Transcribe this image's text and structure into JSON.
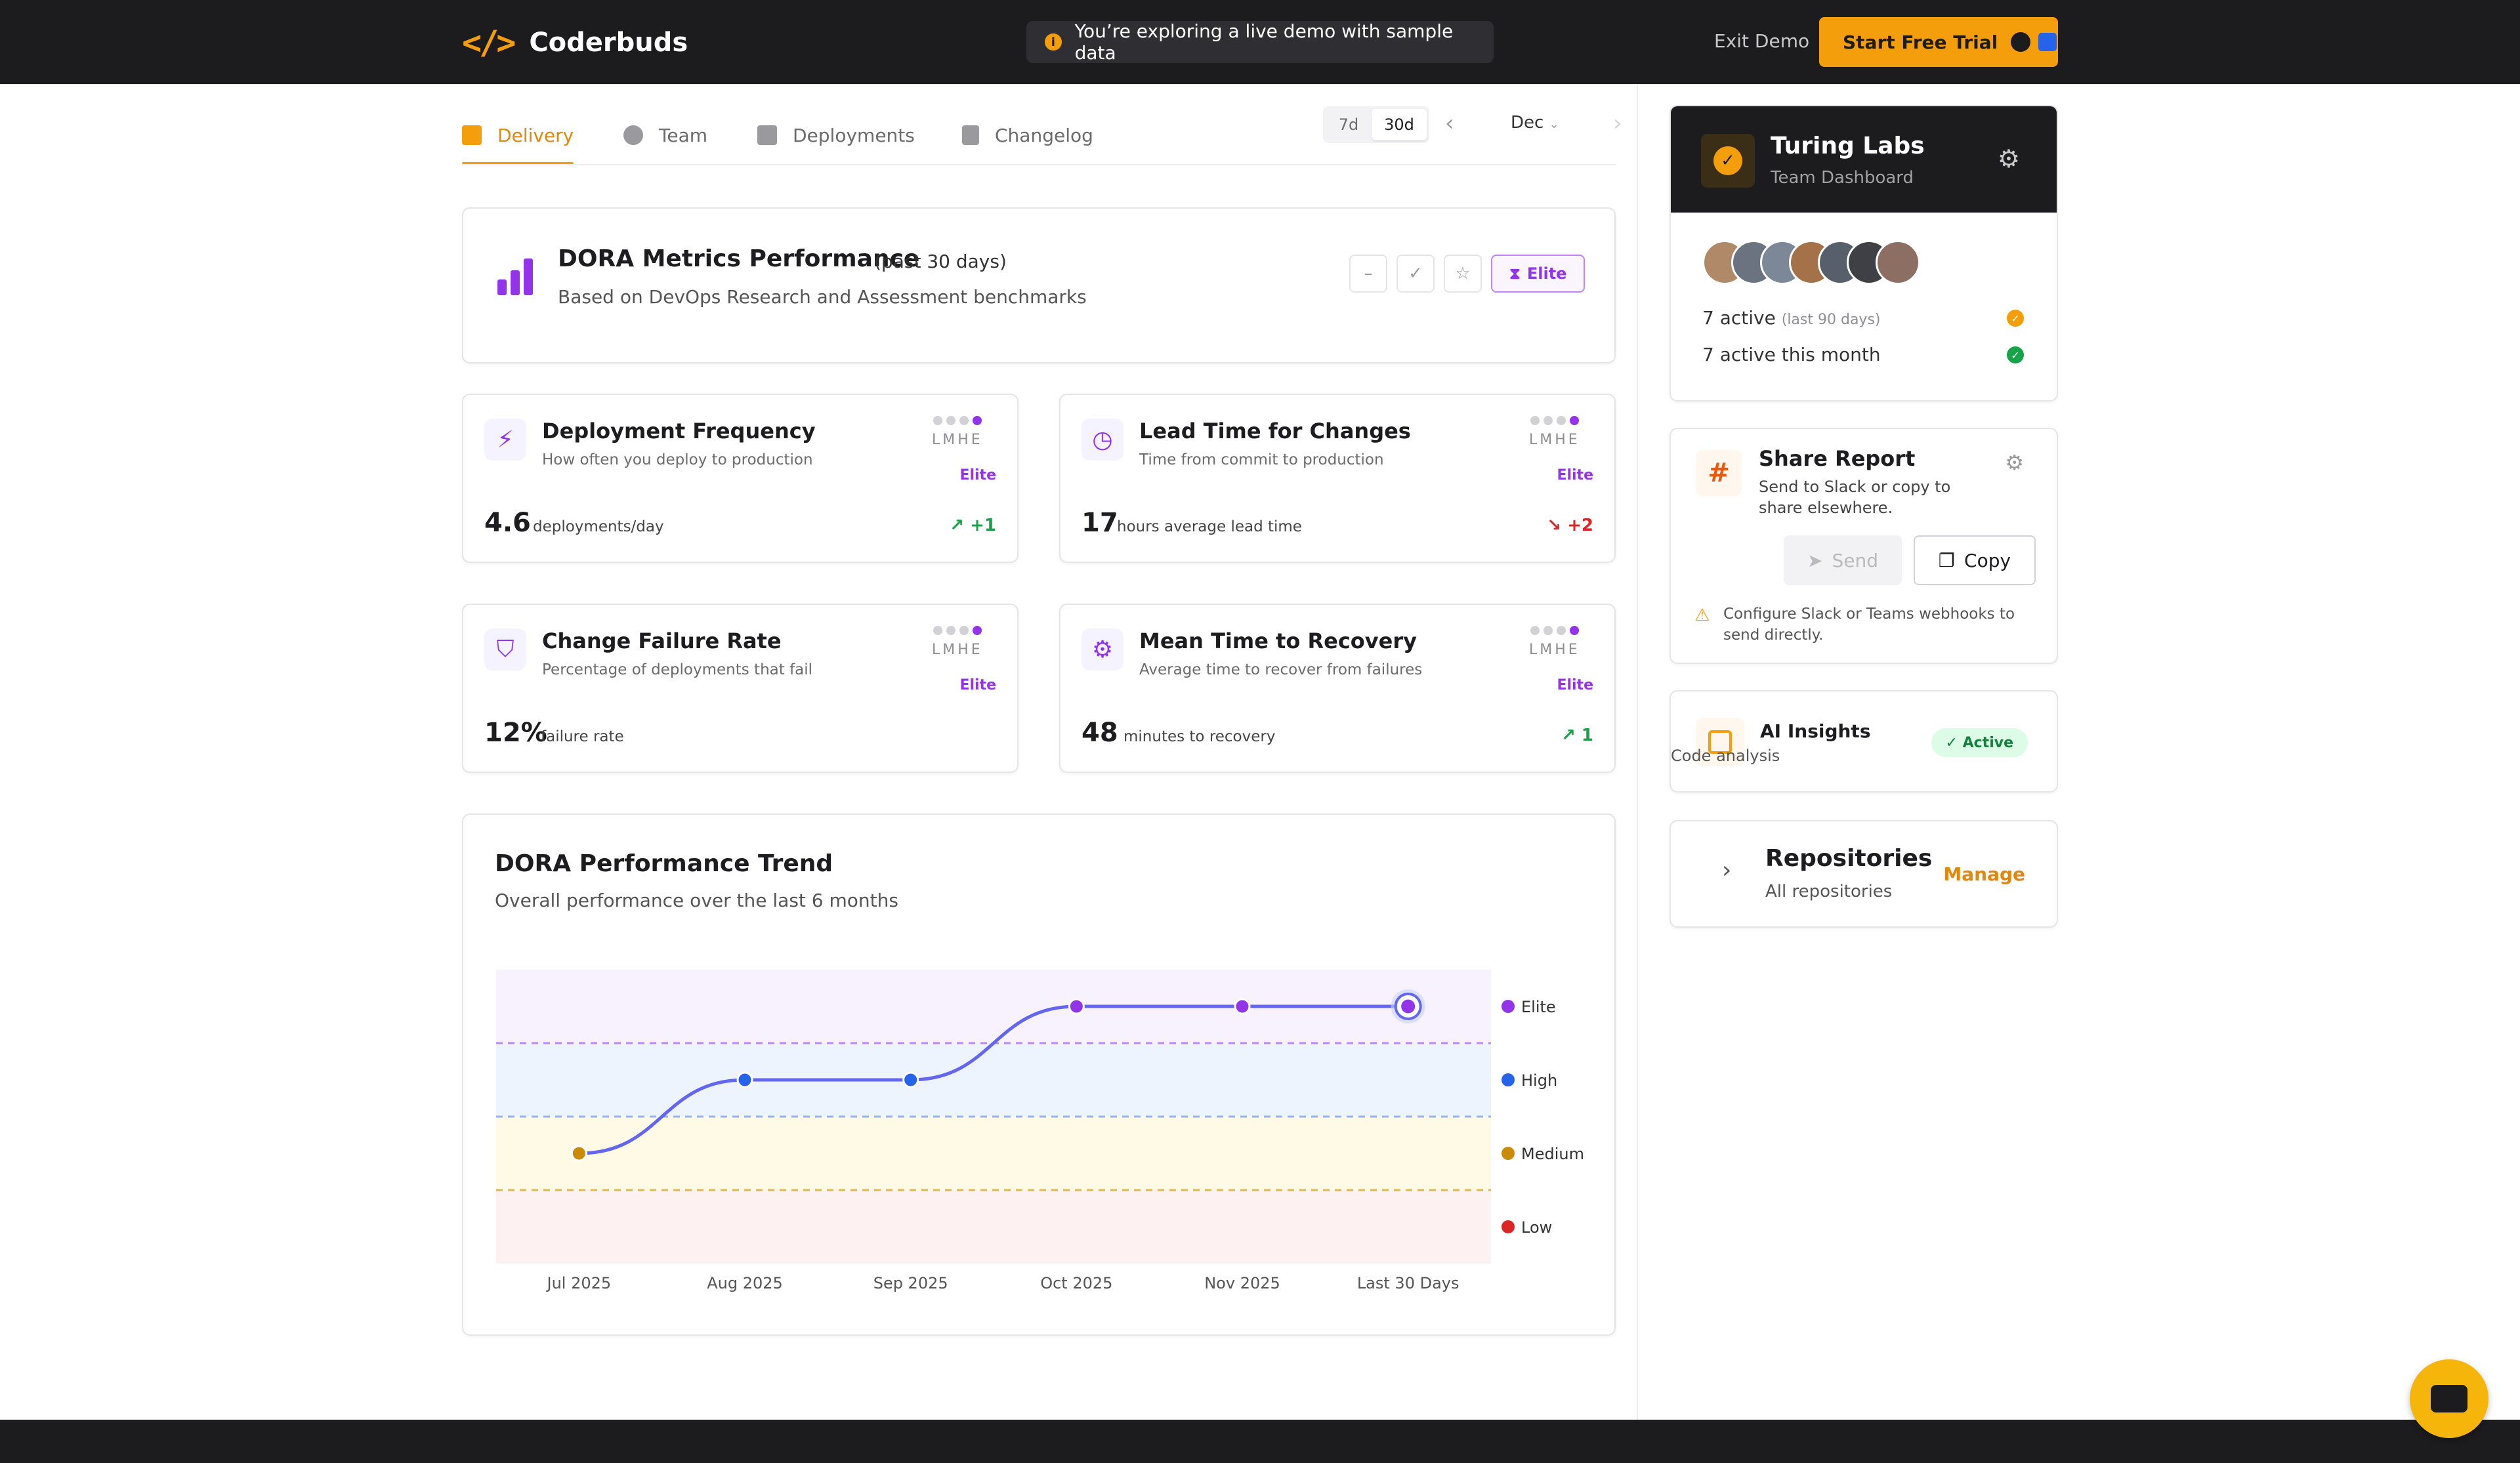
{
  "header": {
    "brand": "Coderbuds",
    "logo_glyph": "</>",
    "demo_banner": "You’re exploring a live demo with sample data",
    "exit_demo": "Exit Demo",
    "trial_button": "Start Free Trial",
    "trial_icons": [
      "github-icon",
      "bitbucket-icon"
    ]
  },
  "tabs": [
    {
      "label": "Delivery",
      "icon": "chart-icon",
      "active": true
    },
    {
      "label": "Team",
      "icon": "users-icon",
      "active": false
    },
    {
      "label": "Deployments",
      "icon": "server-icon",
      "active": false
    },
    {
      "label": "Changelog",
      "icon": "document-icon",
      "active": false
    }
  ],
  "range": {
    "options": [
      "7d",
      "30d"
    ],
    "selected": "30d"
  },
  "month": {
    "selected": "Dec"
  },
  "dora": {
    "title": "DORA Metrics Performance",
    "period": "(past 30 days)",
    "subtitle": "Based on DevOps Research and Assessment benchmarks",
    "badge": "Elite"
  },
  "metrics": [
    {
      "title": "Deployment Frequency",
      "desc": "How often you deploy to production",
      "lmhe": "LMHE",
      "tier": "Elite",
      "value": "4.6",
      "unit": "deployments/day",
      "trend": "+1",
      "trend_dir": "up",
      "icon": "lightning-icon"
    },
    {
      "title": "Lead Time for Changes",
      "desc": "Time from commit to production",
      "lmhe": "LMHE",
      "tier": "Elite",
      "value": "17",
      "unit": "hours average lead time",
      "trend": "+2",
      "trend_dir": "down",
      "icon": "clock-icon"
    },
    {
      "title": "Change Failure Rate",
      "desc": "Percentage of deployments that fail",
      "lmhe": "LMHE",
      "tier": "Elite",
      "value": "12%",
      "unit": "failure rate",
      "trend": "",
      "trend_dir": "none",
      "icon": "shield-icon"
    },
    {
      "title": "Mean Time to Recovery",
      "desc": "Average time to recover from failures",
      "lmhe": "LMHE",
      "tier": "Elite",
      "value": "48",
      "unit": "minutes to recovery",
      "trend": "1",
      "trend_dir": "up",
      "icon": "gear-icon"
    }
  ],
  "trend": {
    "title": "DORA Performance Trend",
    "subtitle": "Overall performance over the last 6 months"
  },
  "chart_data": {
    "type": "line",
    "x": [
      "Jul 2025",
      "Aug 2025",
      "Sep 2025",
      "Oct 2025",
      "Nov 2025",
      "Last 30 Days"
    ],
    "levels": [
      "Low",
      "Medium",
      "High",
      "Elite"
    ],
    "values": [
      "Medium",
      "High",
      "High",
      "Elite",
      "Elite",
      "Elite"
    ],
    "point_colors": [
      "#ca8a04",
      "#2563eb",
      "#2563eb",
      "#9333ea",
      "#9333ea",
      "#9333ea"
    ],
    "legend": [
      {
        "label": "Elite",
        "color": "#9333ea"
      },
      {
        "label": "High",
        "color": "#2563eb"
      },
      {
        "label": "Medium",
        "color": "#ca8a04"
      },
      {
        "label": "Low",
        "color": "#dc2626"
      }
    ],
    "band_colors": {
      "Elite": "#f7f2fd",
      "High": "#eef4fd",
      "Medium": "#fefae6",
      "Low": "#fdf1f1"
    },
    "line_color": "#6366f1",
    "legend_position": "right",
    "title": "",
    "xlabel": "",
    "ylabel": ""
  },
  "team": {
    "name": "Turing Labs",
    "subtitle": "Team Dashboard",
    "avatar_colors": [
      "#b08968",
      "#6b7280",
      "#7c8798",
      "#a47148",
      "#57606a",
      "#3f3f46",
      "#8d6e63"
    ],
    "active_90": "7 active",
    "active_90_note": "(last 90 days)",
    "active_month": "7 active this month"
  },
  "share": {
    "title": "Share Report",
    "desc": "Send to Slack or copy to share elsewhere.",
    "send": "Send",
    "copy": "Copy",
    "warning": "Configure Slack or Teams webhooks to send directly."
  },
  "ai": {
    "title": "AI Insights",
    "subtitle": "Code analysis",
    "badge": "✓ Active"
  },
  "repos": {
    "title": "Repositories",
    "subtitle": "All repositories",
    "manage": "Manage"
  }
}
